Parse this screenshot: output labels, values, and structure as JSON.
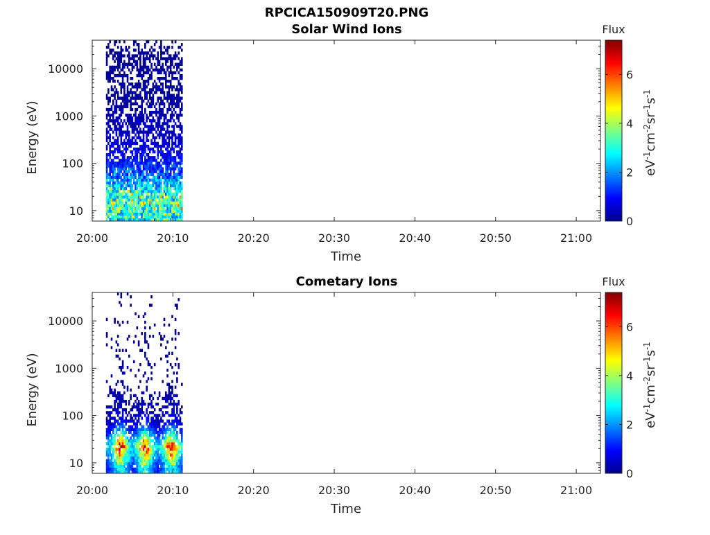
{
  "figure_title": "RPCICA150909T20.PNG",
  "chart_data": [
    {
      "type": "heatmap",
      "title": "Solar Wind Ions",
      "xlabel": "Time",
      "ylabel": "Energy (eV)",
      "x_ticks": [
        "20:00",
        "20:10",
        "20:20",
        "20:30",
        "20:40",
        "20:50",
        "21:00"
      ],
      "x_range_minutes": [
        0,
        63
      ],
      "y_ticks": [
        "10",
        "100",
        "1000",
        "10000"
      ],
      "y_range_eV": [
        6,
        40000
      ],
      "y_scale": "log",
      "data_time_range_minutes": [
        1.7,
        11.2
      ],
      "colorbar": {
        "label": "Flux",
        "unit_base": [
          "eV",
          "cm",
          "sr",
          "s"
        ],
        "unit_exp": [
          "-1",
          "-2",
          "-1",
          "-1"
        ],
        "ticks": [
          "0",
          "2",
          "4",
          "6"
        ],
        "range": [
          0,
          7.4
        ],
        "colormap": "jet"
      },
      "profile_by_log_energy": [
        {
          "logE": 0.85,
          "flux": 2.8,
          "fill": 0.97
        },
        {
          "logE": 1.1,
          "flux": 3.6,
          "fill": 0.95
        },
        {
          "logE": 1.3,
          "flux": 3.2,
          "fill": 0.93
        },
        {
          "logE": 1.55,
          "flux": 2.2,
          "fill": 0.88
        },
        {
          "logE": 1.8,
          "flux": 1.4,
          "fill": 0.8
        },
        {
          "logE": 2.1,
          "flux": 0.9,
          "fill": 0.72
        },
        {
          "logE": 2.6,
          "flux": 0.45,
          "fill": 0.62
        },
        {
          "logE": 3.2,
          "flux": 0.25,
          "fill": 0.58
        },
        {
          "logE": 3.8,
          "flux": 0.2,
          "fill": 0.56
        },
        {
          "logE": 4.2,
          "flux": 0.15,
          "fill": 0.5
        },
        {
          "logE": 4.6,
          "flux": 0.1,
          "fill": 0.15
        }
      ]
    },
    {
      "type": "heatmap",
      "title": "Cometary Ions",
      "xlabel": "Time",
      "ylabel": "Energy (eV)",
      "x_ticks": [
        "20:00",
        "20:10",
        "20:20",
        "20:30",
        "20:40",
        "20:50",
        "21:00"
      ],
      "x_range_minutes": [
        0,
        63
      ],
      "y_ticks": [
        "10",
        "100",
        "1000",
        "10000"
      ],
      "y_range_eV": [
        6,
        40000
      ],
      "y_scale": "log",
      "data_time_range_minutes": [
        1.7,
        11.2
      ],
      "colorbar": {
        "label": "Flux",
        "unit_base": [
          "eV",
          "cm",
          "sr",
          "s"
        ],
        "unit_exp": [
          "-1",
          "-2",
          "-1",
          "-1"
        ],
        "ticks": [
          "0",
          "2",
          "4",
          "6"
        ],
        "range": [
          0,
          7.4
        ],
        "colormap": "jet"
      },
      "bursts_minutes": [
        3.5,
        6.5,
        9.8
      ],
      "profile_by_log_energy": [
        {
          "logE": 0.85,
          "flux": 3.0,
          "fill": 0.95
        },
        {
          "logE": 1.1,
          "flux": 4.6,
          "fill": 0.9
        },
        {
          "logE": 1.3,
          "flux": 6.6,
          "fill": 0.9
        },
        {
          "logE": 1.55,
          "flux": 3.4,
          "fill": 0.8
        },
        {
          "logE": 1.8,
          "flux": 1.2,
          "fill": 0.7
        },
        {
          "logE": 2.1,
          "flux": 0.5,
          "fill": 0.5
        },
        {
          "logE": 2.6,
          "flux": 0.2,
          "fill": 0.12
        },
        {
          "logE": 3.2,
          "flux": 0.15,
          "fill": 0.08
        },
        {
          "logE": 3.8,
          "flux": 0.1,
          "fill": 0.06
        },
        {
          "logE": 4.2,
          "flux": 0.1,
          "fill": 0.05
        }
      ]
    }
  ]
}
